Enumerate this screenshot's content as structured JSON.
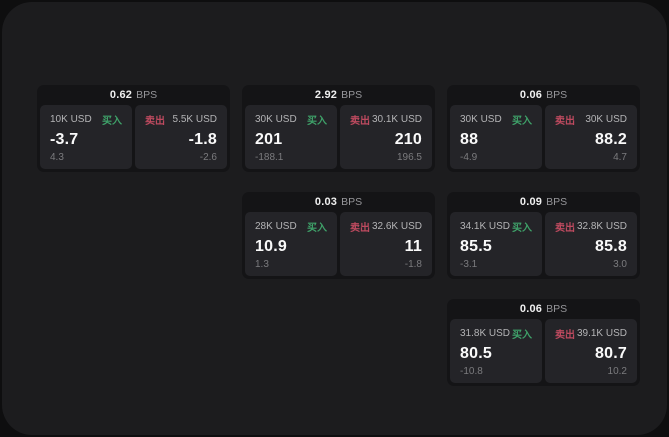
{
  "labels": {
    "bps_unit": "BPS",
    "buy": "买入",
    "sell": "卖出"
  },
  "colors": {
    "buy_green": "#3fa169",
    "sell_red": "#bd4a5f",
    "surface": "#1c1c1e",
    "card_background": "#141416",
    "pane_background": "#242428"
  },
  "cards": [
    {
      "bps": "0.62",
      "buy": {
        "size": "10K USD",
        "price": "-3.7",
        "delta": "4.3"
      },
      "sell": {
        "size": "5.5K USD",
        "price": "-1.8",
        "delta": "-2.6"
      }
    },
    {
      "bps": "2.92",
      "buy": {
        "size": "30K USD",
        "price": "201",
        "delta": "-188.1"
      },
      "sell": {
        "size": "30.1K USD",
        "price": "210",
        "delta": "196.5"
      }
    },
    {
      "bps": "0.06",
      "buy": {
        "size": "30K USD",
        "price": "88",
        "delta": "-4.9"
      },
      "sell": {
        "size": "30K USD",
        "price": "88.2",
        "delta": "4.7"
      }
    },
    {
      "bps": "0.03",
      "buy": {
        "size": "28K USD",
        "price": "10.9",
        "delta": "1.3"
      },
      "sell": {
        "size": "32.6K USD",
        "price": "11",
        "delta": "-1.8"
      }
    },
    {
      "bps": "0.09",
      "buy": {
        "size": "34.1K USD",
        "price": "85.5",
        "delta": "-3.1"
      },
      "sell": {
        "size": "32.8K USD",
        "price": "85.8",
        "delta": "3.0"
      }
    },
    {
      "bps": "0.06",
      "buy": {
        "size": "31.8K USD",
        "price": "80.5",
        "delta": "-10.8"
      },
      "sell": {
        "size": "39.1K USD",
        "price": "80.7",
        "delta": "10.2"
      }
    }
  ]
}
